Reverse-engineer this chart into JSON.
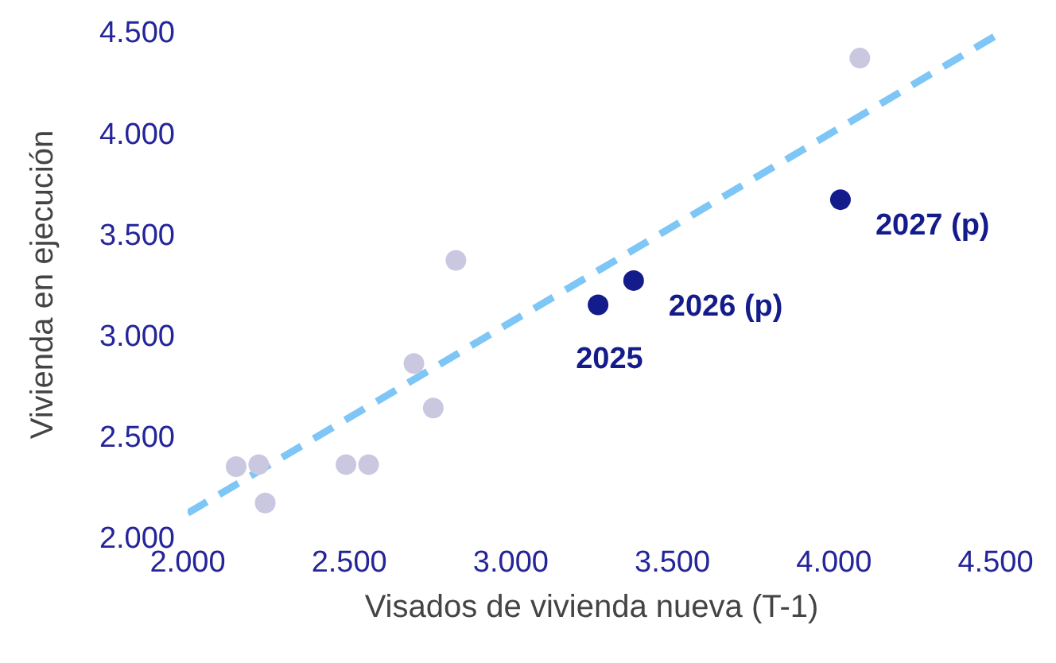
{
  "chart_data": {
    "type": "scatter",
    "xlabel": "Visados de vivienda nueva (T-1)",
    "ylabel": "Vivienda en ejecución",
    "xlim": [
      2000,
      4500
    ],
    "ylim": [
      2000,
      4500
    ],
    "xticks": [
      {
        "value": 2000,
        "label": "2.000"
      },
      {
        "value": 2500,
        "label": "2.500"
      },
      {
        "value": 3000,
        "label": "3.000"
      },
      {
        "value": 3500,
        "label": "3.500"
      },
      {
        "value": 4000,
        "label": "4.000"
      },
      {
        "value": 4500,
        "label": "4.500"
      }
    ],
    "yticks": [
      {
        "value": 2000,
        "label": "2.000"
      },
      {
        "value": 2500,
        "label": "2.500"
      },
      {
        "value": 3000,
        "label": "3.000"
      },
      {
        "value": 3500,
        "label": "3.500"
      },
      {
        "value": 4000,
        "label": "4.000"
      },
      {
        "value": 4500,
        "label": "4.500"
      }
    ],
    "grid": false,
    "legend": false,
    "marker": "circle",
    "series": [
      {
        "color": "#cac7e1",
        "x": [
          2150,
          2220,
          2240,
          2490,
          2560,
          2700,
          2760,
          2830,
          4080
        ],
        "values": [
          2350,
          2360,
          2170,
          2360,
          2360,
          2860,
          2640,
          3370,
          4370
        ]
      },
      {
        "color": "#141c8c",
        "x": [
          3270,
          3380,
          4020
        ],
        "values": [
          3150,
          3270,
          3670
        ]
      },
      {
        "type": "line",
        "color": "#7ec6f6",
        "line_style": "dashed",
        "marker": "none",
        "x": [
          2000,
          4500
        ],
        "values": [
          2120,
          4480
        ]
      }
    ],
    "annotations": [
      {
        "text": "2025",
        "x": 3270,
        "y": 3150
      },
      {
        "text": "2026 (p)",
        "x": 3380,
        "y": 3270
      },
      {
        "text": "2027 (p)",
        "x": 4020,
        "y": 3670
      }
    ]
  }
}
